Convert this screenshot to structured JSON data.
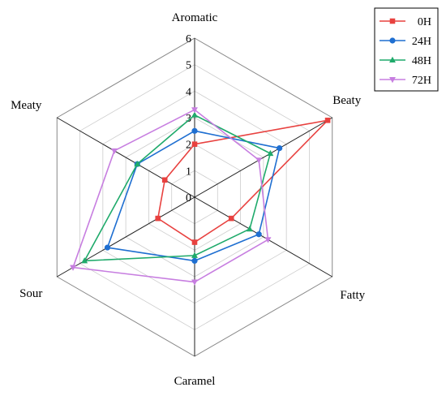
{
  "chart_data": {
    "type": "radar",
    "axes": [
      "Aromatic",
      "Beaty",
      "Fatty",
      "Caramel",
      "Sour",
      "Meaty"
    ],
    "r_ticks": [
      "0",
      "1",
      "2",
      "3",
      "4",
      "5",
      "6"
    ],
    "r_range": [
      0,
      6
    ],
    "grid": true,
    "legend_position": "top-right",
    "series": [
      {
        "name": "0H",
        "color": "#e8413f",
        "marker": "square",
        "values": [
          2.0,
          5.8,
          1.6,
          1.7,
          1.6,
          1.3
        ]
      },
      {
        "name": "24H",
        "color": "#1f6fd1",
        "marker": "circle",
        "values": [
          2.5,
          3.7,
          2.8,
          2.4,
          3.8,
          2.5
        ]
      },
      {
        "name": "48H",
        "color": "#1faa6b",
        "marker": "triangle-up",
        "values": [
          3.1,
          3.3,
          2.4,
          2.2,
          4.8,
          2.5
        ]
      },
      {
        "name": "72H",
        "color": "#c77ee0",
        "marker": "triangle-down",
        "values": [
          3.3,
          2.8,
          3.2,
          3.2,
          5.3,
          3.5
        ]
      }
    ]
  }
}
